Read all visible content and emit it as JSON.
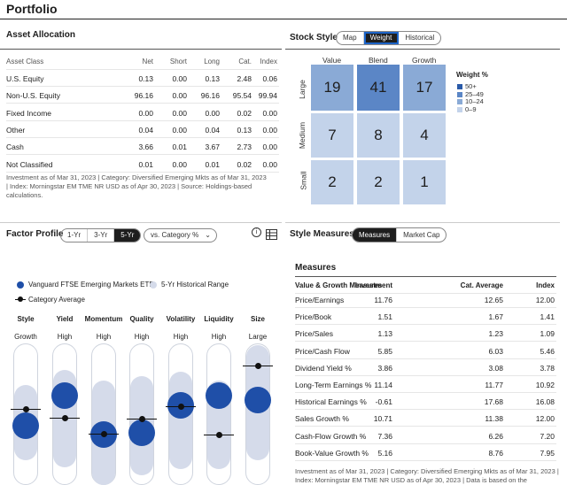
{
  "page_title": "Portfolio",
  "asset_allocation": {
    "title": "Asset Allocation",
    "columns": [
      "Asset Class",
      "Net",
      "Short",
      "Long",
      "Cat.",
      "Index"
    ],
    "rows": [
      [
        "U.S. Equity",
        "0.13",
        "0.00",
        "0.13",
        "2.48",
        "0.06"
      ],
      [
        "Non-U.S. Equity",
        "96.16",
        "0.00",
        "96.16",
        "95.54",
        "99.94"
      ],
      [
        "Fixed Income",
        "0.00",
        "0.00",
        "0.00",
        "0.02",
        "0.00"
      ],
      [
        "Other",
        "0.04",
        "0.00",
        "0.04",
        "0.13",
        "0.00"
      ],
      [
        "Cash",
        "3.66",
        "0.01",
        "3.67",
        "2.73",
        "0.00"
      ],
      [
        "Not Classified",
        "0.01",
        "0.00",
        "0.01",
        "0.02",
        "0.00"
      ]
    ],
    "note": "Investment as of Mar 31, 2023 | Category: Diversified Emerging Mkts as of Mar 31, 2023 | Index: Morningstar EM TME NR USD as of Apr 30, 2023 | Source: Holdings-based calculations."
  },
  "stock_style": {
    "title": "Stock Style",
    "tabs": [
      "Map",
      "Weight",
      "Historical"
    ],
    "active_tab": "Weight",
    "columns": [
      "Value",
      "Blend",
      "Growth"
    ],
    "rows": [
      "Large",
      "Medium",
      "Small"
    ],
    "values": [
      [
        "19",
        "41",
        "17"
      ],
      [
        "7",
        "8",
        "4"
      ],
      [
        "2",
        "2",
        "1"
      ]
    ],
    "legend_title": "Weight %",
    "legend": [
      {
        "label": "50+",
        "color": "#2a5aa8"
      },
      {
        "label": "25–49",
        "color": "#5b86c6"
      },
      {
        "label": "10–24",
        "color": "#8aaad6"
      },
      {
        "label": "0–9",
        "color": "#c3d3ea"
      }
    ],
    "cell_colors": [
      [
        "#8aaad6",
        "#5b86c6",
        "#8aaad6"
      ],
      [
        "#c3d3ea",
        "#c3d3ea",
        "#c3d3ea"
      ],
      [
        "#c3d3ea",
        "#c3d3ea",
        "#c3d3ea"
      ]
    ]
  },
  "factor_profile": {
    "title": "Factor Profile",
    "tabs": [
      "1-Yr",
      "3-Yr",
      "5-Yr"
    ],
    "active_tab": "5-Yr",
    "dropdown": "vs. Category %",
    "legend": {
      "fund": "Vanguard FTSE Emerging Markets ETF",
      "range": "5-Yr Historical Range",
      "avg": "Category Average"
    },
    "factors": [
      {
        "name": "Style",
        "sub": "Growth"
      },
      {
        "name": "Yield",
        "sub": "High"
      },
      {
        "name": "Momentum",
        "sub": "High"
      },
      {
        "name": "Quality",
        "sub": "High"
      },
      {
        "name": "Volatility",
        "sub": "High"
      },
      {
        "name": "Liquidity",
        "sub": "High"
      },
      {
        "name": "Size",
        "sub": "Large"
      }
    ]
  },
  "style_measures": {
    "title": "Style Measures",
    "tabs": [
      "Measures",
      "Market Cap"
    ],
    "active_tab": "Measures",
    "subtitle": "Measures",
    "columns": [
      "Value & Growth Measures",
      "Investment",
      "Cat. Average",
      "Index"
    ],
    "rows": [
      [
        "Price/Earnings",
        "11.76",
        "12.65",
        "12.00"
      ],
      [
        "Price/Book",
        "1.51",
        "1.67",
        "1.41"
      ],
      [
        "Price/Sales",
        "1.13",
        "1.23",
        "1.09"
      ],
      [
        "Price/Cash Flow",
        "5.85",
        "6.03",
        "5.46"
      ],
      [
        "Dividend Yield %",
        "3.86",
        "3.08",
        "3.78"
      ],
      [
        "Long-Term Earnings %",
        "11.14",
        "11.77",
        "10.92"
      ],
      [
        "Historical Earnings %",
        "-0.61",
        "17.68",
        "16.08"
      ],
      [
        "Sales Growth %",
        "10.71",
        "11.38",
        "12.00"
      ],
      [
        "Cash-Flow Growth %",
        "7.36",
        "6.26",
        "7.20"
      ],
      [
        "Book-Value Growth %",
        "5.16",
        "8.76",
        "7.95"
      ]
    ],
    "note": "Investment as of Mar 31, 2023 | Category: Diversified Emerging Mkts as of Mar 31, 2023 | Index: Morningstar EM TME NR USD as of Apr 30, 2023 | Data is based on the"
  }
}
